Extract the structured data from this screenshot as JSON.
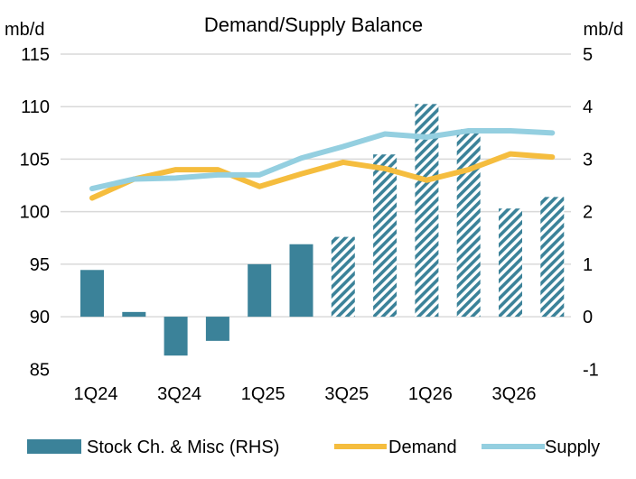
{
  "chart_data": {
    "type": "bar+line",
    "title": "Demand/Supply Balance",
    "ylabel_left": "mb/d",
    "ylabel_right": "mb/d",
    "ylim_left": [
      85,
      115
    ],
    "ylim_right": [
      -1,
      5
    ],
    "left_ticks": [
      "85",
      "90",
      "95",
      "100",
      "105",
      "110",
      "115"
    ],
    "right_ticks": [
      "-1",
      "0",
      "1",
      "2",
      "3",
      "4",
      "5"
    ],
    "categories": [
      "1Q24",
      "2Q24",
      "3Q24",
      "4Q24",
      "1Q25",
      "2Q25",
      "3Q25",
      "4Q25",
      "1Q26",
      "2Q26",
      "3Q26",
      "4Q26"
    ],
    "x_tick_labels": [
      "1Q24",
      "3Q24",
      "1Q25",
      "3Q25",
      "1Q26",
      "3Q26"
    ],
    "forecast_start_index": 6,
    "grid": true,
    "legend_position": "bottom",
    "series": [
      {
        "name": "Stock Ch. & Misc (RHS)",
        "type": "bar",
        "axis": "right",
        "color": "#3b8299",
        "values": [
          0.89,
          0.09,
          -0.74,
          -0.46,
          1.0,
          1.38,
          1.52,
          3.09,
          4.05,
          3.57,
          2.06,
          2.28
        ]
      },
      {
        "name": "Demand",
        "type": "line",
        "axis": "left",
        "color": "#f5bd3e",
        "values": [
          101.3,
          103.1,
          104.0,
          104.0,
          102.4,
          103.6,
          104.7,
          104.1,
          103.0,
          104.0,
          105.5,
          105.2
        ]
      },
      {
        "name": "Supply",
        "type": "line",
        "axis": "left",
        "color": "#94cfe0",
        "values": [
          102.2,
          103.1,
          103.2,
          103.5,
          103.5,
          105.1,
          106.2,
          107.4,
          107.1,
          107.7,
          107.7,
          107.5
        ]
      }
    ]
  }
}
